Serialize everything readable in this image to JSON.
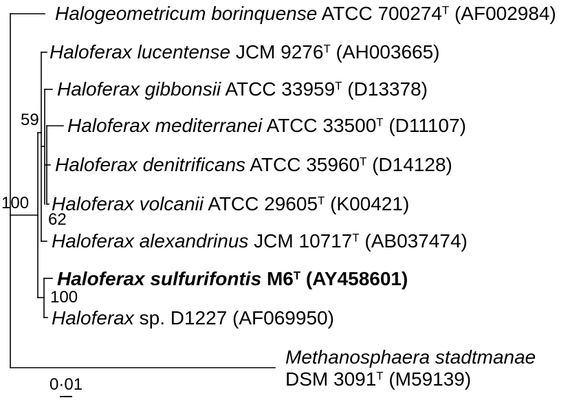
{
  "taxa": [
    {
      "name": "Halogeometricum borinquense",
      "strain": "ATCC 700274",
      "type_mark": "T",
      "accession": "(AF002984)"
    },
    {
      "name": "Haloferax lucentense",
      "strain": "JCM 9276",
      "type_mark": "T",
      "accession": "(AH003665)"
    },
    {
      "name": "Haloferax gibbonsii",
      "strain": "ATCC 33959",
      "type_mark": "T",
      "accession": "(D13378)"
    },
    {
      "name": "Haloferax mediterranei",
      "strain": "ATCC 33500",
      "type_mark": "T",
      "accession": "(D11107)"
    },
    {
      "name": "Haloferax denitrificans",
      "strain": "ATCC 35960",
      "type_mark": "T",
      "accession": "(D14128)"
    },
    {
      "name": "Haloferax volcanii",
      "strain": "ATCC 29605",
      "type_mark": "T",
      "accession": "(K00421)"
    },
    {
      "name": "Haloferax alexandrinus",
      "strain": "JCM 10717",
      "type_mark": "T",
      "accession": "(AB037474)"
    },
    {
      "name": "Haloferax sulfurifontis",
      "strain": "M6",
      "type_mark": "T",
      "accession": "(AY458601)"
    },
    {
      "name": "Haloferax",
      "strain": "sp. D1227",
      "accession": "(AF069950)"
    },
    {
      "name": "Methanosphaera stadtmanae",
      "strain": "DSM 3091",
      "type_mark": "T",
      "accession": "(M59139)"
    }
  ],
  "bootstrap_values": [
    "59",
    "100",
    "62",
    "100"
  ],
  "scale_bar": {
    "label": "0·01"
  }
}
